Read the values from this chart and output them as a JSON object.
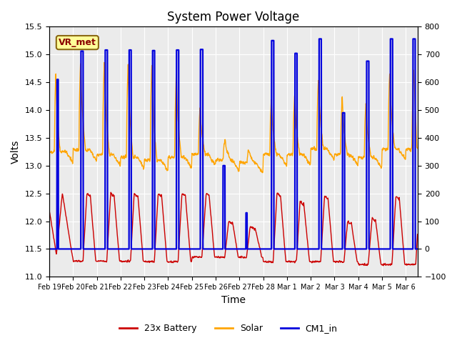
{
  "title": "System Power Voltage",
  "xlabel": "Time",
  "ylabel_left": "Volts",
  "ylim_left": [
    11.0,
    15.5
  ],
  "ylim_right": [
    -100,
    800
  ],
  "xlim_days": 15.5,
  "bg_color": "#ffffff",
  "plot_bg": "#ebebeb",
  "grid_color": "#ffffff",
  "annotation_text": "VR_met",
  "annotation_fg": "#8b0000",
  "annotation_bg": "#ffff99",
  "annotation_edge": "#8b6914",
  "legend_labels": [
    "23x Battery",
    "Solar",
    "CM1_in"
  ],
  "line_colors": [
    "#cc0000",
    "#ffa500",
    "#0000dd"
  ],
  "xtick_labels": [
    "Feb 19",
    "Feb 20",
    "Feb 21",
    "Feb 22",
    "Feb 23",
    "Feb 24",
    "Feb 25",
    "Feb 26",
    "Feb 27",
    "Feb 28",
    "Mar 1",
    "Mar 2",
    "Mar 3",
    "Mar 4",
    "Mar 5",
    "Mar 6"
  ],
  "xtick_pos": [
    0,
    1,
    2,
    3,
    4,
    5,
    6,
    7,
    8,
    9,
    10,
    11,
    12,
    13,
    14,
    15
  ],
  "left_yticks": [
    11.0,
    11.5,
    12.0,
    12.5,
    13.0,
    13.5,
    14.0,
    14.5,
    15.0,
    15.5
  ],
  "right_yticks": [
    -100,
    0,
    100,
    200,
    300,
    400,
    500,
    600,
    700,
    800
  ]
}
